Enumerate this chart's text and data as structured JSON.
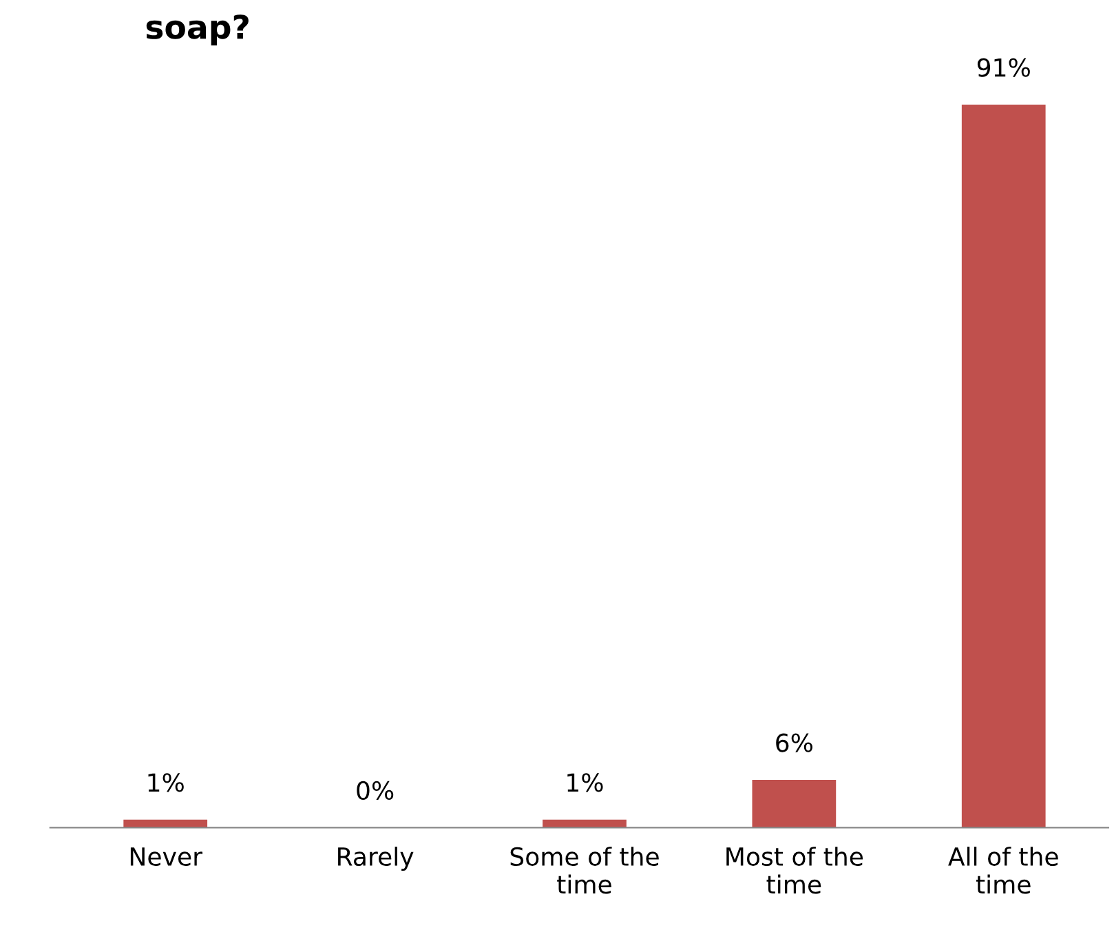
{
  "chart_data": {
    "type": "bar",
    "title": "soap?",
    "categories": [
      "Never",
      "Rarely",
      "Some of the\ntime",
      "Most of the\ntime",
      "All of the\ntime"
    ],
    "values": [
      1,
      0,
      1,
      6,
      91
    ],
    "value_labels": [
      "1%",
      "0%",
      "1%",
      "6%",
      "91%"
    ],
    "color": "#c0504d",
    "grid": false,
    "legend": false
  }
}
